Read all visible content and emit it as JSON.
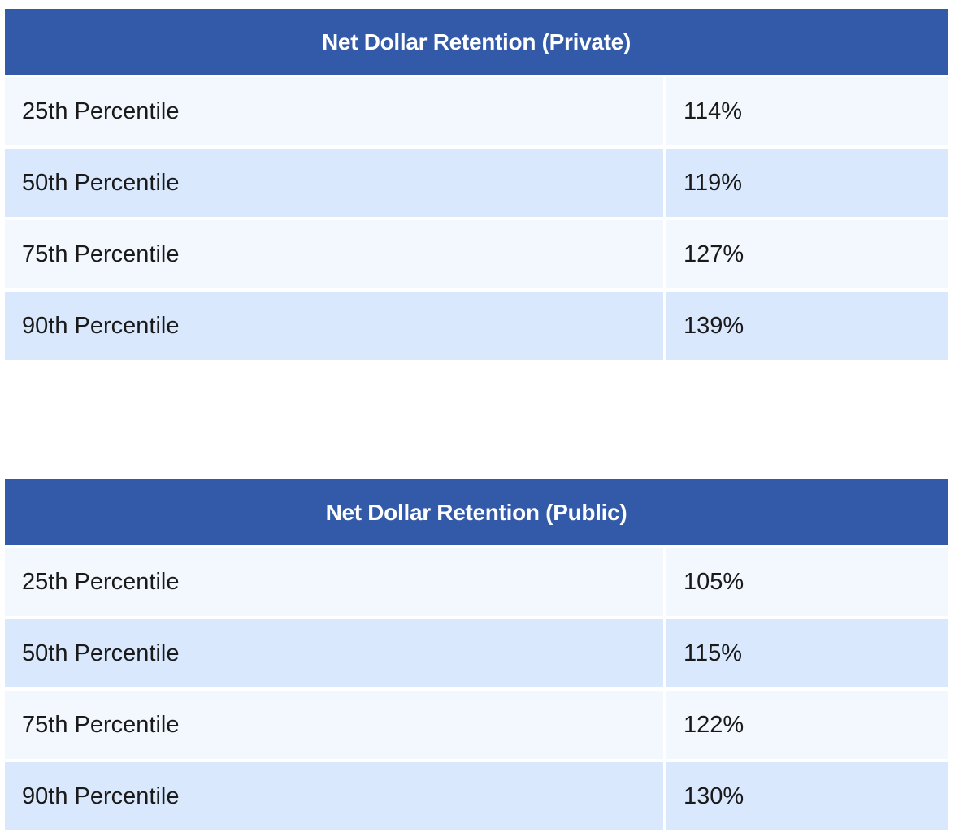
{
  "tables": [
    {
      "title": "Net Dollar Retention (Private)",
      "rows": [
        {
          "label": "25th Percentile",
          "value": "114%"
        },
        {
          "label": "50th Percentile",
          "value": "119%"
        },
        {
          "label": "75th Percentile",
          "value": "127%"
        },
        {
          "label": "90th Percentile",
          "value": "139%"
        }
      ]
    },
    {
      "title": "Net Dollar Retention (Public)",
      "rows": [
        {
          "label": "25th Percentile",
          "value": "105%"
        },
        {
          "label": "50th Percentile",
          "value": "115%"
        },
        {
          "label": "75th Percentile",
          "value": "122%"
        },
        {
          "label": "90th Percentile",
          "value": "130%"
        }
      ]
    }
  ],
  "colors": {
    "header_bg": "#335aa8",
    "row_light": "#f3f8ff",
    "row_dark": "#d9e8fd"
  }
}
